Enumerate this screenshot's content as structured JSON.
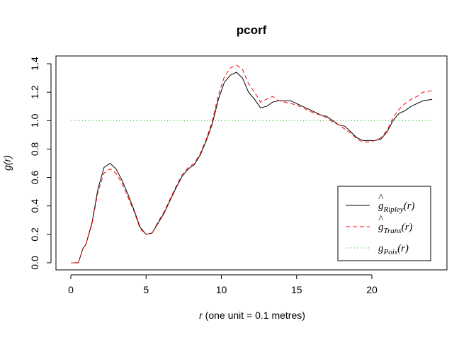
{
  "chart_data": {
    "type": "line",
    "title": "pcorf",
    "xlabel_var": "r",
    "xlabel_rest": " (one unit = 0.1 metres)",
    "ylabel": "g(r)",
    "xlim": [
      0,
      24
    ],
    "ylim": [
      0,
      1.4
    ],
    "xticks": [
      0,
      5,
      10,
      15,
      20
    ],
    "yticks": [
      0.0,
      0.2,
      0.4,
      0.6,
      0.8,
      1.0,
      1.2,
      1.4
    ],
    "ytick_labels": [
      "0.0",
      "0.2",
      "0.4",
      "0.6",
      "0.8",
      "1.0",
      "1.2",
      "1.4"
    ],
    "legend_position": "bottom-right",
    "x": [
      0,
      0.5,
      0.8,
      1.0,
      1.4,
      1.8,
      2.2,
      2.6,
      3.0,
      3.4,
      3.8,
      4.2,
      4.6,
      5.0,
      5.4,
      5.8,
      6.2,
      6.6,
      7.0,
      7.4,
      7.8,
      8.2,
      8.6,
      9.0,
      9.4,
      9.8,
      10.2,
      10.6,
      11.0,
      11.4,
      11.8,
      12.2,
      12.6,
      13.0,
      13.4,
      13.8,
      14.2,
      14.6,
      15.0,
      15.4,
      15.8,
      16.2,
      16.6,
      17.0,
      17.4,
      17.8,
      18.2,
      18.6,
      19.0,
      19.4,
      19.8,
      20.2,
      20.6,
      21.0,
      21.4,
      21.8,
      22.2,
      22.6,
      23.0,
      23.4,
      24.0
    ],
    "series": [
      {
        "key": "ripley",
        "color": "#000000",
        "dash": "solid",
        "values": [
          0,
          0,
          0.1,
          0.13,
          0.28,
          0.52,
          0.67,
          0.7,
          0.66,
          0.58,
          0.48,
          0.37,
          0.25,
          0.2,
          0.21,
          0.28,
          0.35,
          0.44,
          0.53,
          0.61,
          0.66,
          0.69,
          0.76,
          0.86,
          0.98,
          1.15,
          1.27,
          1.32,
          1.34,
          1.3,
          1.2,
          1.15,
          1.09,
          1.1,
          1.13,
          1.14,
          1.14,
          1.14,
          1.12,
          1.1,
          1.08,
          1.06,
          1.04,
          1.03,
          1.0,
          0.97,
          0.96,
          0.92,
          0.88,
          0.86,
          0.86,
          0.86,
          0.87,
          0.92,
          1.0,
          1.05,
          1.07,
          1.1,
          1.12,
          1.14,
          1.15
        ]
      },
      {
        "key": "trans",
        "color": "#ff0000",
        "dash": "6,4",
        "values": [
          0,
          0,
          0.1,
          0.13,
          0.27,
          0.5,
          0.63,
          0.66,
          0.63,
          0.56,
          0.46,
          0.36,
          0.24,
          0.2,
          0.21,
          0.29,
          0.36,
          0.45,
          0.54,
          0.62,
          0.67,
          0.7,
          0.77,
          0.87,
          1.0,
          1.18,
          1.31,
          1.37,
          1.39,
          1.36,
          1.26,
          1.2,
          1.13,
          1.15,
          1.17,
          1.14,
          1.13,
          1.12,
          1.11,
          1.09,
          1.07,
          1.05,
          1.04,
          1.02,
          0.99,
          0.97,
          0.94,
          0.91,
          0.87,
          0.85,
          0.85,
          0.86,
          0.88,
          0.93,
          1.02,
          1.08,
          1.12,
          1.15,
          1.17,
          1.2,
          1.21
        ]
      },
      {
        "key": "pois",
        "color": "#00bb00",
        "dash": "1,3",
        "values": [
          1,
          1,
          1,
          1,
          1,
          1,
          1,
          1,
          1,
          1,
          1,
          1,
          1,
          1,
          1,
          1,
          1,
          1,
          1,
          1,
          1,
          1,
          1,
          1,
          1,
          1,
          1,
          1,
          1,
          1,
          1,
          1,
          1,
          1,
          1,
          1,
          1,
          1,
          1,
          1,
          1,
          1,
          1,
          1,
          1,
          1,
          1,
          1,
          1,
          1,
          1,
          1,
          1,
          1,
          1,
          1,
          1,
          1,
          1,
          1,
          1
        ]
      }
    ],
    "legend": [
      {
        "key": "ripley",
        "hat": "^",
        "base": "g",
        "sub": "Ripley",
        "arg": "(r)",
        "color": "#000000",
        "dash": "solid"
      },
      {
        "key": "trans",
        "hat": "^",
        "base": "g",
        "sub": "Trans",
        "arg": "(r)",
        "color": "#ff0000",
        "dash": "6,4"
      },
      {
        "key": "pois",
        "hat": "",
        "base": "g",
        "sub": "Pois",
        "arg": "(r)",
        "color": "#00bb00",
        "dash": "1,3"
      }
    ]
  }
}
